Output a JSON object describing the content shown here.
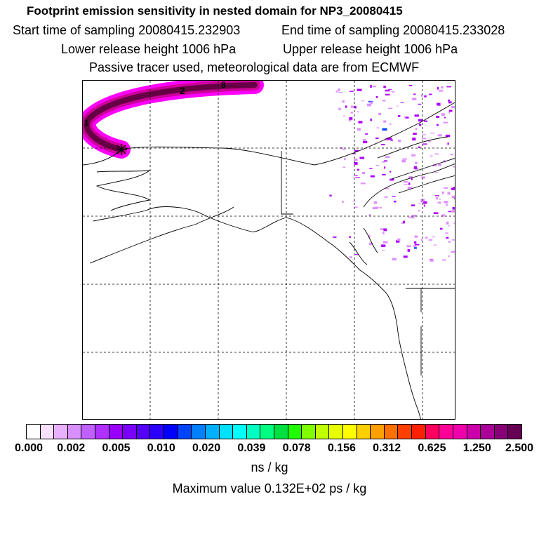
{
  "header": {
    "title": "Footprint emission sensitivity in nested domain for NP3_20080415",
    "start_time": "Start time of sampling 20080415.232903",
    "end_time": "End time of sampling 20080415.233028",
    "lower_height": "Lower release height 1006 hPa",
    "upper_height": "Upper release height 1006 hPa",
    "tracer_info": "Passive tracer used, meteorological data are from ECMWF"
  },
  "map": {
    "contour_labels": [
      "2",
      "8",
      "1"
    ],
    "colors": {
      "plume_outer": "#ff00ff",
      "plume_mid": "#cc0099",
      "plume_inner": "#660044",
      "speckle": "#b000ff",
      "speckle_light": "#e090ff",
      "speckle_blue": "#0040ff",
      "coast": "#000000",
      "grid": "#000000"
    },
    "marker_icon": "release-point-star-icon"
  },
  "colorbar": {
    "swatches": [
      "#ffffff",
      "#f8e0ff",
      "#e8b0ff",
      "#d890ff",
      "#c060ff",
      "#b030ff",
      "#9900ff",
      "#7a00ff",
      "#5500ff",
      "#2a00ff",
      "#0000ff",
      "#0044ff",
      "#0080ff",
      "#00b0ff",
      "#00e0ff",
      "#00ffff",
      "#00ffc0",
      "#00ff80",
      "#00e040",
      "#20ff00",
      "#80ff00",
      "#c0ff00",
      "#e8ff00",
      "#ffff00",
      "#ffd000",
      "#ffa000",
      "#ff7000",
      "#ff4000",
      "#ff2000",
      "#ff0060",
      "#ff0099",
      "#ee00aa",
      "#cc00aa",
      "#aa0099",
      "#880077",
      "#660055"
    ],
    "tick_labels": [
      "0.000",
      "0.002",
      "0.005",
      "0.010",
      "0.020",
      "0.039",
      "0.078",
      "0.156",
      "0.312",
      "0.625",
      "1.250",
      "2.500"
    ],
    "unit": "ns / kg",
    "max_value": "Maximum value  0.132E+02 ps / kg"
  }
}
